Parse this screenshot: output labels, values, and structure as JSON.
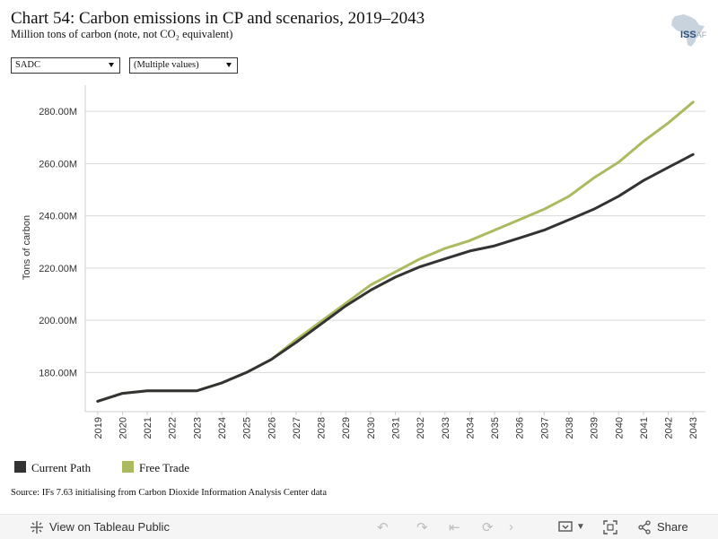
{
  "title": "Chart 54: Carbon emissions in CP and scenarios, 2019–2043",
  "subtitle": "Million tons of carbon (note, not CO₂ equivalent)",
  "logo": {
    "text": "ISS",
    "suffix": "AF",
    "icon": "africa-map-logo"
  },
  "filters": [
    {
      "selected": "SADC"
    },
    {
      "selected": "(Multiple values)"
    }
  ],
  "chart_data": {
    "type": "line",
    "ylabel": "Tons of carbon",
    "xlabel": "",
    "x": [
      "2019",
      "2020",
      "2021",
      "2022",
      "2023",
      "2024",
      "2025",
      "2026",
      "2027",
      "2028",
      "2029",
      "2030",
      "2031",
      "2032",
      "2033",
      "2034",
      "2035",
      "2036",
      "2037",
      "2038",
      "2039",
      "2040",
      "2041",
      "2042",
      "2043"
    ],
    "ylim": [
      165,
      290
    ],
    "yticks": [
      180,
      200,
      220,
      240,
      260,
      280
    ],
    "ytick_labels": [
      "180.00M",
      "200.00M",
      "220.00M",
      "240.00M",
      "260.00M",
      "280.00M"
    ],
    "grid": true,
    "legend_position": "bottom-left",
    "series": [
      {
        "name": "Current Path",
        "color": "#333333",
        "values": [
          169,
          172,
          173,
          173,
          173,
          176,
          180,
          185,
          191.5,
          198.5,
          205.5,
          211.5,
          216.5,
          220.5,
          223.5,
          226.5,
          228.5,
          231.5,
          234.5,
          238.5,
          242.5,
          247.5,
          253.5,
          258.5,
          263.5
        ]
      },
      {
        "name": "Free Trade",
        "color": "#a9bb5e",
        "values": [
          169,
          172,
          173,
          173,
          173,
          176,
          180,
          185,
          192.5,
          199.5,
          206.5,
          213.5,
          218.5,
          223.5,
          227.5,
          230.5,
          234.5,
          238.5,
          242.5,
          247.5,
          254.5,
          260.5,
          268.5,
          275.5,
          283.5
        ]
      }
    ]
  },
  "source": "Source: IFs 7.63 initialising from Carbon Dioxide Information Analysis Center data",
  "toolbar": {
    "view_label": "View on Tableau Public",
    "share_label": "Share"
  }
}
